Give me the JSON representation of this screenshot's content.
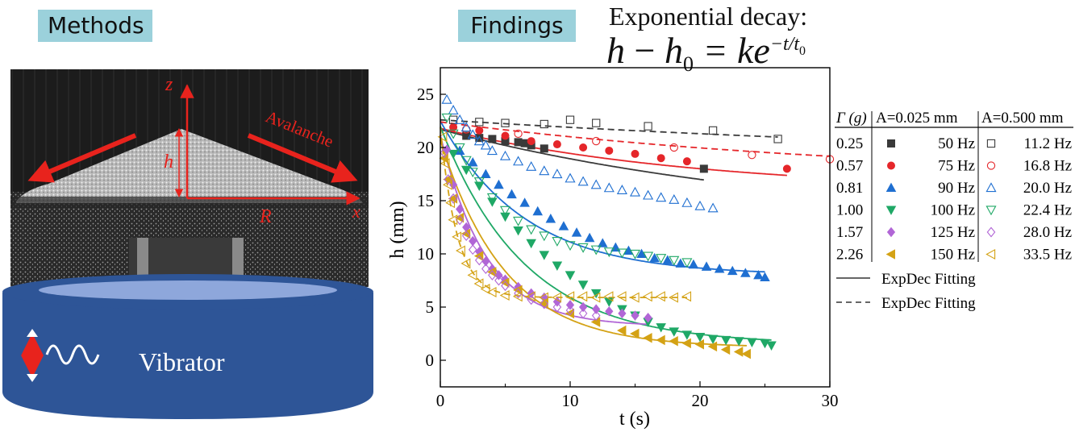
{
  "methods_label": "Methods",
  "findings_label": "Findings",
  "equation": {
    "title": "Exponential decay:",
    "lhs_h": "h",
    "lhs_minus": " − ",
    "lhs_h0": "h",
    "lhs_sub": "0",
    "eq": " = ke",
    "exponent": "−t/t",
    "exponent_sub": "0"
  },
  "photo": {
    "axis_z": "z",
    "axis_h": "h",
    "axis_r": "R",
    "axis_x": "x",
    "avalanche": "Avalanche",
    "vibrator": "Vibrator"
  },
  "colors": {
    "teal_label": "#9bd1db",
    "vibrator_blue": "#2e5597",
    "arrow_red": "#e8231d",
    "s50": "#3a3a3a",
    "s75": "#e5262a",
    "s90": "#1f6fd1",
    "s100": "#1fa866",
    "s125": "#b166d6",
    "s150": "#d4a215"
  },
  "legend": {
    "col_gamma": "Γ (g)",
    "col_a1": "A=0.025 mm",
    "col_a2": "A=0.500 mm",
    "rows": [
      {
        "gamma": "0.25",
        "f1": "50   Hz",
        "f2": "11.2 Hz"
      },
      {
        "gamma": "0.57",
        "f1": "75   Hz",
        "f2": "16.8 Hz"
      },
      {
        "gamma": "0.81",
        "f1": "90   Hz",
        "f2": "20.0 Hz"
      },
      {
        "gamma": "1.00",
        "f1": "100 Hz",
        "f2": "22.4 Hz"
      },
      {
        "gamma": "1.57",
        "f1": "125 Hz",
        "f2": "28.0 Hz"
      },
      {
        "gamma": "2.26",
        "f1": "150 Hz",
        "f2": "33.5 Hz"
      }
    ],
    "fit_solid": "ExpDec Fitting",
    "fit_dashed": "ExpDec Fitting"
  },
  "chart_data": {
    "type": "scatter",
    "xlabel": "t (s)",
    "ylabel": "h (mm)",
    "xlim": [
      0,
      30
    ],
    "ylim": [
      -2.5,
      27.5
    ],
    "xticks": [
      0,
      10,
      20,
      30
    ],
    "yticks": [
      0,
      5,
      10,
      15,
      20,
      25
    ],
    "series": [
      {
        "name": "50 Hz",
        "marker": "square-filled",
        "color": "#3a3a3a",
        "points": [
          [
            2,
            21.1
          ],
          [
            3,
            20.9
          ],
          [
            4,
            20.8
          ],
          [
            5,
            20.6
          ],
          [
            6,
            20.5
          ],
          [
            6.5,
            20.4
          ],
          [
            7,
            20.2
          ],
          [
            8,
            19.9
          ],
          [
            20.3,
            18.0
          ]
        ],
        "fit": {
          "h0": 12.5,
          "k": 9.2,
          "t0": 28
        }
      },
      {
        "name": "75 Hz",
        "marker": "circle-filled",
        "color": "#e5262a",
        "points": [
          [
            1,
            21.9
          ],
          [
            3,
            21.6
          ],
          [
            5,
            21.1
          ],
          [
            7,
            20.6
          ],
          [
            9,
            20.3
          ],
          [
            11,
            20.0
          ],
          [
            13,
            19.7
          ],
          [
            15,
            19.4
          ],
          [
            17,
            19.0
          ],
          [
            19,
            18.7
          ],
          [
            26.7,
            18.0
          ]
        ],
        "fit": {
          "h0": 15.8,
          "k": 6.0,
          "t0": 20
        }
      },
      {
        "name": "90 Hz",
        "marker": "triangle-up-filled",
        "color": "#1f6fd1",
        "points": [
          [
            1.5,
            19.7
          ],
          [
            2.5,
            18.6
          ],
          [
            3.5,
            17.5
          ],
          [
            4.5,
            16.5
          ],
          [
            5.5,
            15.6
          ],
          [
            6.5,
            14.8
          ],
          [
            7.5,
            14.0
          ],
          [
            8.5,
            13.3
          ],
          [
            9.5,
            12.6
          ],
          [
            10.5,
            12.0
          ],
          [
            11.5,
            11.5
          ],
          [
            12.5,
            11.0
          ],
          [
            13.5,
            10.6
          ],
          [
            14.5,
            10.3
          ],
          [
            15.5,
            10.0
          ],
          [
            16.5,
            9.6
          ],
          [
            17.5,
            9.4
          ],
          [
            18.5,
            9.1
          ],
          [
            19.5,
            9.0
          ],
          [
            20.5,
            8.8
          ],
          [
            21.5,
            8.6
          ],
          [
            22.5,
            8.4
          ],
          [
            23.5,
            8.2
          ],
          [
            24.5,
            8.0
          ],
          [
            25,
            7.8
          ]
        ],
        "fit": {
          "h0": 8.0,
          "k": 14.5,
          "t0": 6.5
        }
      },
      {
        "name": "100 Hz",
        "marker": "triangle-down-filled",
        "color": "#1fa866",
        "points": [
          [
            1,
            19.4
          ],
          [
            2,
            17.9
          ],
          [
            3,
            16.4
          ],
          [
            4,
            14.9
          ],
          [
            5,
            13.5
          ],
          [
            6,
            12.2
          ],
          [
            7,
            11.0
          ],
          [
            8,
            9.9
          ],
          [
            9,
            8.9
          ],
          [
            10,
            8.0
          ],
          [
            11,
            7.1
          ],
          [
            12,
            6.3
          ],
          [
            13,
            5.5
          ],
          [
            14,
            4.8
          ],
          [
            15,
            4.2
          ],
          [
            16,
            3.6
          ],
          [
            17,
            3.1
          ],
          [
            18,
            2.7
          ],
          [
            19,
            2.4
          ],
          [
            20,
            2.2
          ],
          [
            21,
            2.0
          ],
          [
            22,
            1.9
          ],
          [
            23,
            1.8
          ],
          [
            24,
            1.7
          ],
          [
            25,
            1.6
          ],
          [
            25.5,
            1.4
          ]
        ],
        "fit": {
          "h0": 1.5,
          "k": 20.5,
          "t0": 6.5
        }
      },
      {
        "name": "125 Hz",
        "marker": "diamond-filled",
        "color": "#b166d6",
        "points": [
          [
            0.5,
            19.8
          ],
          [
            1,
            16.5
          ],
          [
            1.5,
            14.2
          ],
          [
            2,
            12.5
          ],
          [
            2.5,
            11.2
          ],
          [
            3,
            10.2
          ],
          [
            3.5,
            9.3
          ],
          [
            4,
            8.6
          ],
          [
            4.5,
            8.0
          ],
          [
            5,
            7.6
          ],
          [
            6,
            6.9
          ],
          [
            7,
            6.3
          ],
          [
            8,
            5.9
          ],
          [
            9,
            5.5
          ],
          [
            10,
            5.2
          ],
          [
            11,
            5.0
          ],
          [
            12,
            4.8
          ],
          [
            13,
            4.6
          ],
          [
            14,
            4.4
          ],
          [
            15,
            4.2
          ],
          [
            16,
            4.0
          ]
        ],
        "fit": {
          "h0": 3.2,
          "k": 18.0,
          "t0": 3.5
        }
      },
      {
        "name": "150 Hz",
        "marker": "triangle-left-filled",
        "color": "#d4a215",
        "points": [
          [
            0.3,
            19.0
          ],
          [
            0.6,
            17.0
          ],
          [
            1,
            15.2
          ],
          [
            1.5,
            13.4
          ],
          [
            2,
            11.9
          ],
          [
            3,
            9.8
          ],
          [
            4,
            8.3
          ],
          [
            5,
            7.3
          ],
          [
            6,
            6.6
          ],
          [
            8,
            5.4
          ],
          [
            10,
            4.4
          ],
          [
            12,
            3.6
          ],
          [
            14,
            2.8
          ],
          [
            15,
            2.5
          ],
          [
            16,
            2.1
          ],
          [
            17,
            1.9
          ],
          [
            18,
            1.8
          ],
          [
            19,
            1.6
          ],
          [
            20,
            1.5
          ],
          [
            21,
            1.3
          ],
          [
            22,
            1.0
          ],
          [
            23,
            0.8
          ],
          [
            23.6,
            0.6
          ]
        ],
        "fit": {
          "h0": 1.2,
          "k": 19.5,
          "t0": 5.0
        }
      },
      {
        "name": "11.2 Hz",
        "marker": "square-open",
        "color": "#3a3a3a",
        "points": [
          [
            1,
            22.6
          ],
          [
            3,
            22.4
          ],
          [
            5,
            22.3
          ],
          [
            8,
            22.2
          ],
          [
            10,
            22.6
          ],
          [
            12,
            22.3
          ],
          [
            16,
            22.0
          ],
          [
            21,
            21.6
          ],
          [
            26,
            20.8
          ]
        ],
        "fit": {
          "h0": 18.0,
          "k": 4.6,
          "t0": 60
        }
      },
      {
        "name": "16.8 Hz",
        "marker": "circle-open",
        "color": "#e5262a",
        "points": [
          [
            2,
            21.7
          ],
          [
            6,
            21.3
          ],
          [
            12,
            20.6
          ],
          [
            18,
            20.0
          ],
          [
            24,
            19.3
          ],
          [
            30,
            18.9
          ]
        ],
        "fit": {
          "h0": 16.8,
          "k": 5.6,
          "t0": 35
        }
      },
      {
        "name": "20.0 Hz",
        "marker": "triangle-up-open",
        "color": "#1f6fd1",
        "points": [
          [
            0.5,
            24.5
          ],
          [
            1,
            23.5
          ],
          [
            1.5,
            22.6
          ],
          [
            2,
            21.9
          ],
          [
            2.5,
            21.2
          ],
          [
            3,
            20.6
          ],
          [
            3.5,
            20.2
          ],
          [
            4,
            19.7
          ],
          [
            5,
            19.2
          ],
          [
            6,
            18.7
          ],
          [
            7,
            18.2
          ],
          [
            8,
            17.8
          ],
          [
            9,
            17.5
          ],
          [
            10,
            17.1
          ],
          [
            11,
            16.8
          ],
          [
            12,
            16.5
          ],
          [
            13,
            16.2
          ],
          [
            14,
            16.0
          ],
          [
            15,
            15.8
          ],
          [
            16,
            15.5
          ],
          [
            17,
            15.3
          ],
          [
            18,
            15.1
          ],
          [
            19,
            14.8
          ],
          [
            20,
            14.5
          ],
          [
            21,
            14.3
          ]
        ],
        "fit": null
      },
      {
        "name": "22.4 Hz",
        "marker": "triangle-down-open",
        "color": "#1fa866",
        "points": [
          [
            0.5,
            22.8
          ],
          [
            1,
            21.3
          ],
          [
            1.5,
            20.0
          ],
          [
            2,
            18.8
          ],
          [
            2.5,
            17.7
          ],
          [
            3,
            16.8
          ],
          [
            4,
            15.3
          ],
          [
            5,
            14.1
          ],
          [
            6,
            13.1
          ],
          [
            7,
            12.3
          ],
          [
            8,
            11.7
          ],
          [
            9,
            11.2
          ],
          [
            10,
            10.8
          ],
          [
            11,
            10.6
          ],
          [
            12,
            10.4
          ],
          [
            13,
            10.2
          ],
          [
            14,
            10.1
          ],
          [
            15,
            10.0
          ],
          [
            16,
            9.8
          ],
          [
            17,
            9.6
          ],
          [
            18,
            9.4
          ],
          [
            19,
            9.2
          ]
        ],
        "fit": null
      },
      {
        "name": "28.0 Hz",
        "marker": "diamond-open",
        "color": "#b166d6",
        "points": [
          [
            0.3,
            19.5
          ],
          [
            0.6,
            17.0
          ],
          [
            1,
            15.2
          ],
          [
            1.5,
            13.2
          ],
          [
            2,
            11.7
          ],
          [
            2.5,
            10.4
          ],
          [
            3,
            9.4
          ],
          [
            3.5,
            8.6
          ],
          [
            4,
            8.0
          ],
          [
            4.5,
            7.5
          ],
          [
            5,
            7.0
          ],
          [
            6,
            6.3
          ],
          [
            7,
            5.7
          ],
          [
            8,
            5.3
          ],
          [
            9,
            5.0
          ],
          [
            10,
            4.7
          ],
          [
            11,
            4.4
          ],
          [
            12,
            4.2
          ]
        ],
        "fit": null
      },
      {
        "name": "33.5 Hz",
        "marker": "triangle-left-open",
        "color": "#d4a215",
        "points": [
          [
            0.2,
            21.0
          ],
          [
            0.4,
            18.5
          ],
          [
            0.6,
            16.5
          ],
          [
            0.8,
            14.8
          ],
          [
            1,
            13.2
          ],
          [
            1.3,
            11.6
          ],
          [
            1.6,
            10.3
          ],
          [
            2,
            9.1
          ],
          [
            2.5,
            8.0
          ],
          [
            3,
            7.2
          ],
          [
            3.5,
            6.7
          ],
          [
            4,
            6.4
          ],
          [
            5,
            6.1
          ],
          [
            6,
            6.0
          ],
          [
            7,
            6.0
          ],
          [
            8,
            5.9
          ],
          [
            9,
            5.9
          ],
          [
            10,
            6.0
          ],
          [
            11,
            6.0
          ],
          [
            12,
            5.9
          ],
          [
            13,
            6.0
          ],
          [
            14,
            6.0
          ],
          [
            15,
            5.9
          ],
          [
            16,
            6.0
          ],
          [
            17,
            6.0
          ],
          [
            18,
            5.9
          ],
          [
            19,
            6.0
          ]
        ],
        "fit": {
          "h0": 5.9,
          "k": 16.0,
          "t0": 1.3
        }
      }
    ]
  }
}
